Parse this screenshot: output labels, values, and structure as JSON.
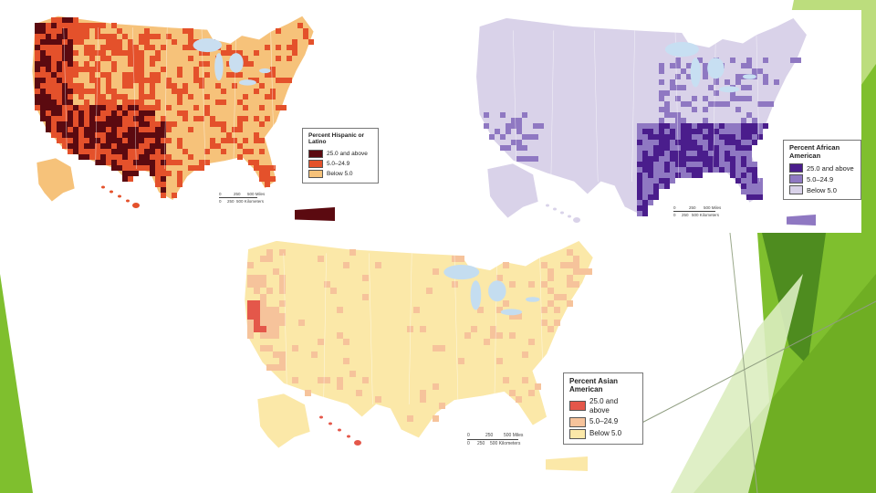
{
  "maps": [
    {
      "id": "hispanic",
      "title": "Percent Hispanic or Latino",
      "legend": [
        {
          "label": "25.0 and above",
          "color": "#5b0a10"
        },
        {
          "label": "5.0–24.9",
          "color": "#e4512b"
        },
        {
          "label": "Below 5.0",
          "color": "#f6c27a"
        }
      ],
      "scale": {
        "miles": [
          "0",
          "250",
          "500 Miles"
        ],
        "km": [
          "0",
          "250",
          "500 Kilometers"
        ]
      },
      "water_color": "#c9def0"
    },
    {
      "id": "african-american",
      "title": "Percent African American",
      "legend": [
        {
          "label": "25.0 and above",
          "color": "#4a1d8c"
        },
        {
          "label": "5.0–24.9",
          "color": "#8f78c2"
        },
        {
          "label": "Below 5.0",
          "color": "#d9d2e9"
        }
      ],
      "scale": {
        "miles": [
          "0",
          "250",
          "500 Miles"
        ],
        "km": [
          "0",
          "250",
          "500 Kilometers"
        ]
      },
      "water_color": "#c7dff2"
    },
    {
      "id": "asian-american",
      "title": "Percent Asian American",
      "legend": [
        {
          "label": "25.0 and above",
          "color": "#e4574a"
        },
        {
          "label": "5.0–24.9",
          "color": "#f6c39b"
        },
        {
          "label": "Below 5.0",
          "color": "#fbe8a8"
        }
      ],
      "scale": {
        "miles": [
          "0",
          "250",
          "500 Miles"
        ],
        "km": [
          "0",
          "250",
          "500 Kilometers"
        ]
      },
      "water_color": "#c4ddf0"
    }
  ],
  "theme_colors": {
    "green_dark": "#4e8c1f",
    "green_mid": "#7fbf2e",
    "green_light": "#b5d96f",
    "green_pale": "#dcedc0"
  }
}
